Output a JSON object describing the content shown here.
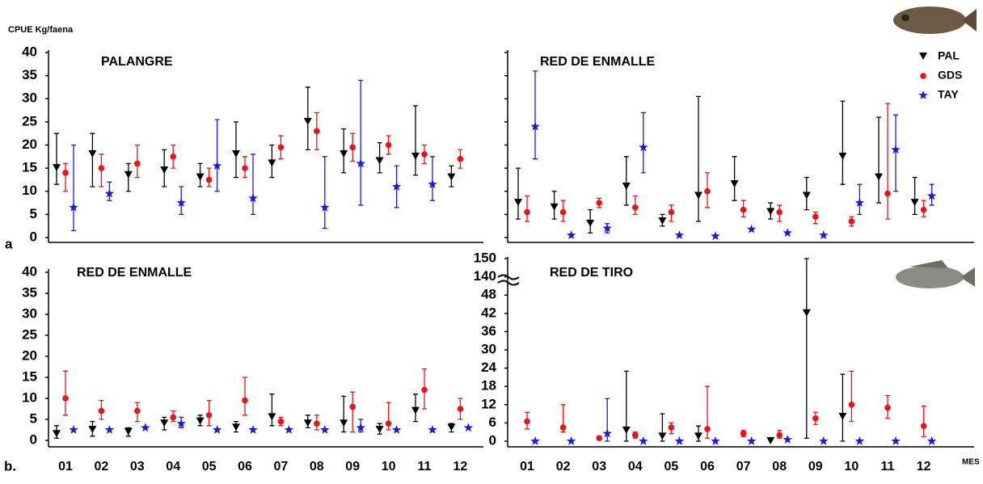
{
  "y_label": "CPUE Kg/faena",
  "x_label": "MES",
  "panel_a": "a",
  "panel_b": "b.",
  "chart_data": [
    {
      "type": "errorbar",
      "title": "PALANGRE",
      "ylim": [
        0,
        40
      ],
      "yticks": [
        0,
        5,
        10,
        15,
        20,
        25,
        30,
        35,
        40
      ],
      "series": [
        {
          "color": "#000000",
          "values": [
            15,
            18,
            13.5,
            14.5,
            13,
            18,
            16,
            25,
            18,
            16.5,
            17.5,
            13
          ],
          "lower": [
            11.5,
            11,
            10,
            11,
            11,
            13,
            13,
            19,
            14,
            14,
            13.5,
            11
          ],
          "upper": [
            22.5,
            22.5,
            16,
            19,
            16,
            25,
            20,
            32.5,
            23.5,
            20.5,
            28.5,
            15.5
          ]
        },
        {
          "color": "#e8141a",
          "values": [
            14,
            15,
            16,
            17.5,
            12.5,
            15,
            19.5,
            23,
            19.5,
            20,
            18,
            17
          ],
          "lower": [
            10,
            11,
            13,
            15,
            11,
            13,
            17,
            19,
            16.5,
            18,
            16,
            15
          ],
          "upper": [
            16,
            18,
            20,
            20,
            15,
            17.5,
            22,
            27,
            22.5,
            22,
            20,
            19
          ]
        },
        {
          "color": "#1a1ae0",
          "values": [
            6.5,
            9.5,
            null,
            7.5,
            15.5,
            8.5,
            null,
            6.5,
            16,
            11,
            11.5,
            null
          ],
          "lower": [
            1.5,
            8,
            null,
            5,
            10,
            5,
            null,
            2,
            7,
            6.5,
            8,
            null
          ],
          "upper": [
            20,
            12,
            null,
            11,
            25.5,
            18,
            null,
            17.5,
            34,
            15.5,
            17.5,
            null
          ]
        }
      ]
    },
    {
      "type": "errorbar",
      "title": "RED DE ENMALLE",
      "ylim": [
        0,
        40
      ],
      "legend": "upper right",
      "series": [
        {
          "name": "PAL",
          "color": "#000000",
          "values": [
            7.5,
            6.5,
            3,
            11,
            3.5,
            9,
            11.5,
            5.5,
            9,
            17.5,
            13,
            7.5
          ],
          "lower": [
            4,
            4,
            1,
            7,
            2.5,
            3.5,
            8,
            4,
            6,
            11.5,
            7.5,
            5
          ],
          "upper": [
            15,
            10,
            6,
            17.5,
            5,
            30.5,
            17.5,
            7.5,
            13,
            29.5,
            26,
            13
          ]
        },
        {
          "name": "GDS",
          "color": "#e8141a",
          "values": [
            5.5,
            5.5,
            7.5,
            6.5,
            5.5,
            10,
            6,
            5.5,
            4.5,
            3.5,
            9.5,
            6
          ],
          "lower": [
            3.5,
            3.5,
            6.5,
            5,
            3.5,
            6.5,
            4.5,
            3.5,
            3,
            2.5,
            4,
            4.5
          ],
          "upper": [
            9,
            8,
            8.5,
            9,
            7,
            14,
            8,
            7,
            5.5,
            4.5,
            29,
            8
          ]
        },
        {
          "name": "TAY",
          "color": "#1a1ae0",
          "values": [
            24,
            0.5,
            2,
            19.5,
            0.5,
            0.3,
            1.8,
            1,
            0.5,
            7.5,
            19,
            9
          ],
          "lower": [
            17,
            null,
            1,
            14,
            null,
            null,
            null,
            null,
            null,
            5,
            10,
            7
          ],
          "upper": [
            36,
            null,
            3,
            27,
            null,
            null,
            null,
            null,
            null,
            11.5,
            26.5,
            11.5
          ]
        }
      ]
    },
    {
      "type": "errorbar",
      "title": "RED DE ENMALLE",
      "ylim": [
        0,
        40
      ],
      "yticks": [
        0,
        5,
        10,
        15,
        20,
        25,
        30,
        35,
        40
      ],
      "categories": [
        "01",
        "02",
        "03",
        "04",
        "05",
        "06",
        "07",
        "08",
        "09",
        "10",
        "11",
        "12"
      ],
      "series": [
        {
          "color": "#000000",
          "values": [
            1.5,
            2.5,
            2,
            4,
            4.5,
            3,
            5.5,
            4,
            4,
            2.5,
            7,
            3
          ],
          "lower": [
            0.5,
            1,
            1,
            2.5,
            3.5,
            2,
            3.5,
            3,
            2,
            1.5,
            4.5,
            2
          ],
          "upper": [
            3.5,
            4.5,
            3,
            5.5,
            6,
            4.5,
            11,
            6,
            10.5,
            4,
            11,
            4
          ]
        },
        {
          "color": "#e8141a",
          "values": [
            10,
            7,
            7,
            5.5,
            6,
            9.5,
            4.5,
            4,
            8,
            4,
            12,
            7.5
          ],
          "lower": [
            6,
            5,
            4.5,
            4.5,
            3.5,
            6,
            3.5,
            2.5,
            2,
            2.5,
            7.5,
            5
          ],
          "upper": [
            16.5,
            9.5,
            9,
            7,
            9.5,
            15,
            5.5,
            6,
            11.5,
            9,
            17,
            10
          ]
        },
        {
          "color": "#1a1ae0",
          "values": [
            2.5,
            2.5,
            3,
            4,
            2.5,
            2.5,
            2.5,
            2.5,
            3,
            2.5,
            2.5,
            3
          ],
          "lower": [
            null,
            null,
            null,
            3,
            null,
            null,
            null,
            null,
            2,
            null,
            null,
            null
          ],
          "upper": [
            null,
            null,
            null,
            5.5,
            null,
            null,
            null,
            null,
            5,
            null,
            null,
            null
          ]
        }
      ]
    },
    {
      "type": "errorbar",
      "title": "RED DE TIRO",
      "ylim": [
        0,
        150
      ],
      "axis_break": true,
      "yticks": [
        0,
        6,
        12,
        18,
        24,
        30,
        36,
        42,
        48,
        140,
        150
      ],
      "categories": [
        "01",
        "02",
        "03",
        "04",
        "05",
        "06",
        "07",
        "08",
        "09",
        "10",
        "11",
        "12"
      ],
      "series": [
        {
          "color": "#000000",
          "values": [
            null,
            null,
            null,
            3.5,
            1.5,
            1.5,
            null,
            0,
            42,
            8,
            null,
            null
          ],
          "lower": [
            null,
            null,
            null,
            0,
            0,
            0,
            null,
            null,
            1,
            0,
            null,
            null
          ],
          "upper": [
            null,
            null,
            null,
            23,
            9,
            5,
            null,
            null,
            150,
            22,
            null,
            null
          ]
        },
        {
          "color": "#e8141a",
          "values": [
            6.5,
            4.5,
            1,
            2,
            4.5,
            4,
            2.5,
            2,
            7.5,
            12,
            11,
            5
          ],
          "lower": [
            4,
            3,
            0.5,
            1,
            2.5,
            1,
            1.5,
            1,
            5.5,
            6.5,
            7.5,
            1.5
          ],
          "upper": [
            9.5,
            12,
            1.5,
            3,
            6,
            18,
            3.5,
            3.5,
            9.5,
            23,
            15,
            11.5
          ]
        },
        {
          "color": "#1a1ae0",
          "values": [
            0,
            0,
            2.5,
            0,
            0,
            0,
            0,
            0.5,
            0,
            0,
            0,
            0
          ],
          "lower": [
            null,
            null,
            0,
            null,
            null,
            null,
            null,
            null,
            null,
            null,
            null,
            null
          ],
          "upper": [
            null,
            null,
            14,
            null,
            null,
            null,
            null,
            null,
            null,
            null,
            null,
            null
          ]
        }
      ]
    }
  ]
}
